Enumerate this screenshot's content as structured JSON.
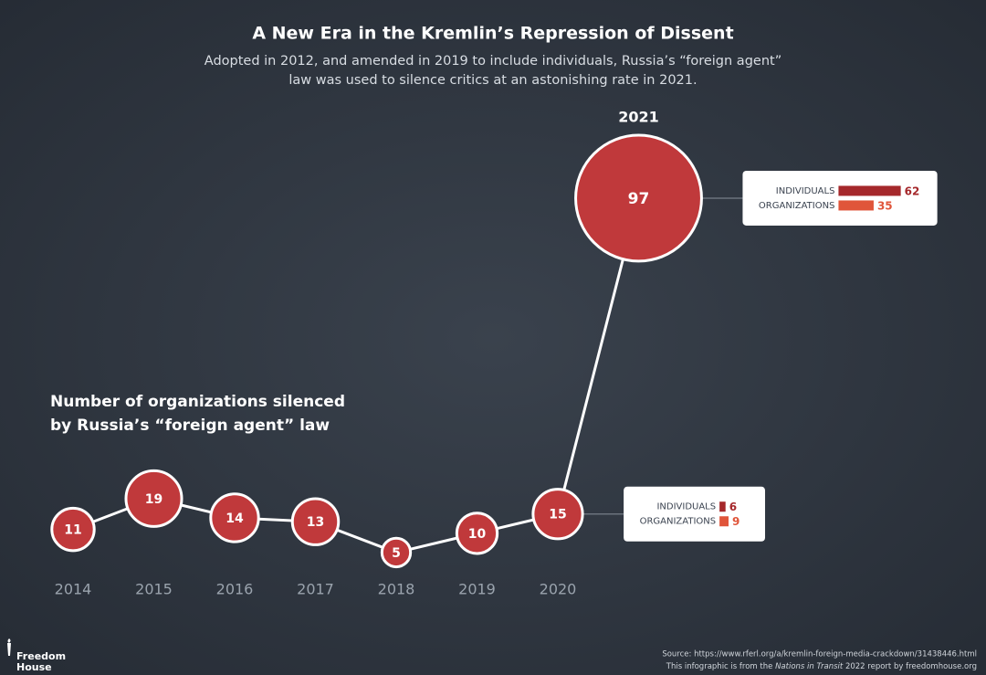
{
  "chart_data": {
    "type": "line",
    "title": "A New Era in the Kremlin’s Repression of Dissent",
    "subtitle": [
      "Adopted in 2012, and amended in 2019 to include individuals, Russia’s “foreign agent”",
      "law was used to silence critics at an astonishing rate in 2021."
    ],
    "chart_title": [
      "Number of organizations silenced",
      "by Russia’s “foreign agent” law"
    ],
    "categories": [
      "2014",
      "2015",
      "2016",
      "2017",
      "2018",
      "2019",
      "2020",
      "2021"
    ],
    "values": [
      11,
      19,
      14,
      13,
      5,
      10,
      15,
      97
    ],
    "color": "#c0393b",
    "breakdown": [
      {
        "name": "INDIVIDUALS",
        "color": "#a5282b",
        "values": [
          null,
          null,
          null,
          null,
          null,
          null,
          6,
          62
        ]
      },
      {
        "name": "ORGANIZATIONS",
        "color": "#e0553a",
        "values": [
          null,
          null,
          null,
          null,
          null,
          null,
          9,
          35
        ]
      }
    ]
  },
  "footer": {
    "source": "Source: https://www.rferl.org/a/kremlin-foreign-media-crackdown/31438446.html",
    "credit": [
      "This infographic is from the ",
      "Nations in Transit",
      " 2022 report by freedomhouse.org"
    ],
    "logo": [
      "Freedom",
      "House"
    ]
  }
}
